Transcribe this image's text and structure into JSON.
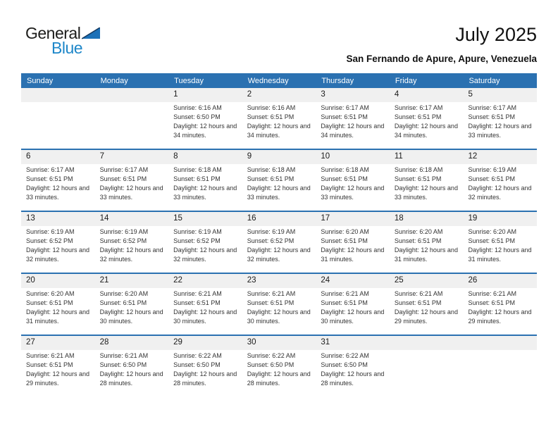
{
  "logo": {
    "part1": "General",
    "part2": "Blue"
  },
  "header": {
    "title": "July 2025",
    "subtitle": "San Fernando de Apure, Apure, Venezuela"
  },
  "colors": {
    "header_bar_blue": "#2b71b1",
    "week_divider_blue": "#2b71b1",
    "number_band_gray": "#f0f0f0",
    "logo_text_blue": "#1e87c9",
    "logo_triangle_blue": "#1c71b8"
  },
  "calendar": {
    "weekdays": [
      "Sunday",
      "Monday",
      "Tuesday",
      "Wednesday",
      "Thursday",
      "Friday",
      "Saturday"
    ],
    "labels": {
      "sunrise": "Sunrise:",
      "sunset": "Sunset:",
      "daylight": "Daylight:"
    },
    "weeks": [
      [
        null,
        null,
        {
          "day": "1",
          "sunrise": "6:16 AM",
          "sunset": "6:50 PM",
          "daylight": "12 hours and 34 minutes."
        },
        {
          "day": "2",
          "sunrise": "6:16 AM",
          "sunset": "6:51 PM",
          "daylight": "12 hours and 34 minutes."
        },
        {
          "day": "3",
          "sunrise": "6:17 AM",
          "sunset": "6:51 PM",
          "daylight": "12 hours and 34 minutes."
        },
        {
          "day": "4",
          "sunrise": "6:17 AM",
          "sunset": "6:51 PM",
          "daylight": "12 hours and 34 minutes."
        },
        {
          "day": "5",
          "sunrise": "6:17 AM",
          "sunset": "6:51 PM",
          "daylight": "12 hours and 33 minutes."
        }
      ],
      [
        {
          "day": "6",
          "sunrise": "6:17 AM",
          "sunset": "6:51 PM",
          "daylight": "12 hours and 33 minutes."
        },
        {
          "day": "7",
          "sunrise": "6:17 AM",
          "sunset": "6:51 PM",
          "daylight": "12 hours and 33 minutes."
        },
        {
          "day": "8",
          "sunrise": "6:18 AM",
          "sunset": "6:51 PM",
          "daylight": "12 hours and 33 minutes."
        },
        {
          "day": "9",
          "sunrise": "6:18 AM",
          "sunset": "6:51 PM",
          "daylight": "12 hours and 33 minutes."
        },
        {
          "day": "10",
          "sunrise": "6:18 AM",
          "sunset": "6:51 PM",
          "daylight": "12 hours and 33 minutes."
        },
        {
          "day": "11",
          "sunrise": "6:18 AM",
          "sunset": "6:51 PM",
          "daylight": "12 hours and 33 minutes."
        },
        {
          "day": "12",
          "sunrise": "6:19 AM",
          "sunset": "6:51 PM",
          "daylight": "12 hours and 32 minutes."
        }
      ],
      [
        {
          "day": "13",
          "sunrise": "6:19 AM",
          "sunset": "6:52 PM",
          "daylight": "12 hours and 32 minutes."
        },
        {
          "day": "14",
          "sunrise": "6:19 AM",
          "sunset": "6:52 PM",
          "daylight": "12 hours and 32 minutes."
        },
        {
          "day": "15",
          "sunrise": "6:19 AM",
          "sunset": "6:52 PM",
          "daylight": "12 hours and 32 minutes."
        },
        {
          "day": "16",
          "sunrise": "6:19 AM",
          "sunset": "6:52 PM",
          "daylight": "12 hours and 32 minutes."
        },
        {
          "day": "17",
          "sunrise": "6:20 AM",
          "sunset": "6:51 PM",
          "daylight": "12 hours and 31 minutes."
        },
        {
          "day": "18",
          "sunrise": "6:20 AM",
          "sunset": "6:51 PM",
          "daylight": "12 hours and 31 minutes."
        },
        {
          "day": "19",
          "sunrise": "6:20 AM",
          "sunset": "6:51 PM",
          "daylight": "12 hours and 31 minutes."
        }
      ],
      [
        {
          "day": "20",
          "sunrise": "6:20 AM",
          "sunset": "6:51 PM",
          "daylight": "12 hours and 31 minutes."
        },
        {
          "day": "21",
          "sunrise": "6:20 AM",
          "sunset": "6:51 PM",
          "daylight": "12 hours and 30 minutes."
        },
        {
          "day": "22",
          "sunrise": "6:21 AM",
          "sunset": "6:51 PM",
          "daylight": "12 hours and 30 minutes."
        },
        {
          "day": "23",
          "sunrise": "6:21 AM",
          "sunset": "6:51 PM",
          "daylight": "12 hours and 30 minutes."
        },
        {
          "day": "24",
          "sunrise": "6:21 AM",
          "sunset": "6:51 PM",
          "daylight": "12 hours and 30 minutes."
        },
        {
          "day": "25",
          "sunrise": "6:21 AM",
          "sunset": "6:51 PM",
          "daylight": "12 hours and 29 minutes."
        },
        {
          "day": "26",
          "sunrise": "6:21 AM",
          "sunset": "6:51 PM",
          "daylight": "12 hours and 29 minutes."
        }
      ],
      [
        {
          "day": "27",
          "sunrise": "6:21 AM",
          "sunset": "6:51 PM",
          "daylight": "12 hours and 29 minutes."
        },
        {
          "day": "28",
          "sunrise": "6:21 AM",
          "sunset": "6:50 PM",
          "daylight": "12 hours and 28 minutes."
        },
        {
          "day": "29",
          "sunrise": "6:22 AM",
          "sunset": "6:50 PM",
          "daylight": "12 hours and 28 minutes."
        },
        {
          "day": "30",
          "sunrise": "6:22 AM",
          "sunset": "6:50 PM",
          "daylight": "12 hours and 28 minutes."
        },
        {
          "day": "31",
          "sunrise": "6:22 AM",
          "sunset": "6:50 PM",
          "daylight": "12 hours and 28 minutes."
        },
        null,
        null
      ]
    ]
  }
}
